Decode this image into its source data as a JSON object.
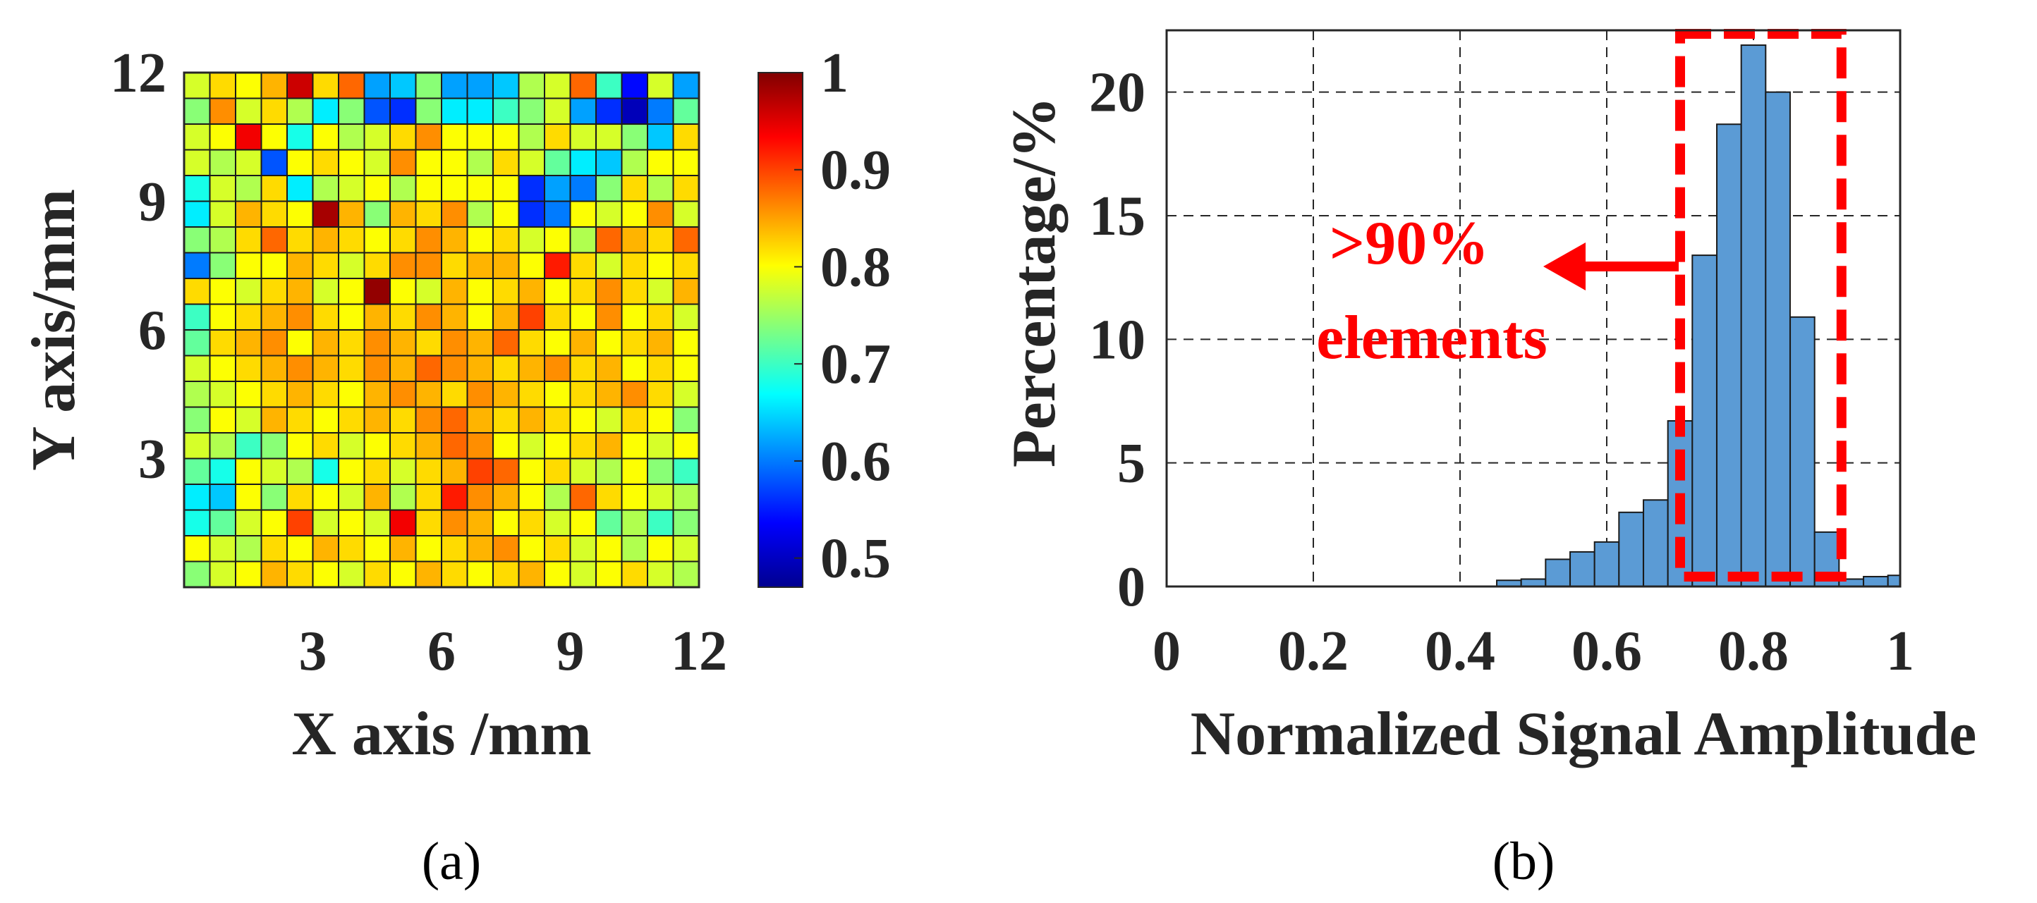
{
  "colors": {
    "hist_bar": "#5b9bd5",
    "highlight": "#ff0000",
    "text": "#262626"
  },
  "chart_data": [
    {
      "type": "heatmap",
      "panel_label": "(a)",
      "xlabel": "X axis /mm",
      "ylabel": "Y axis/mm",
      "xlim": [
        0,
        12
      ],
      "ylim": [
        0,
        12
      ],
      "x_ticks": [
        3,
        6,
        9,
        12
      ],
      "y_ticks": [
        3,
        6,
        9,
        12
      ],
      "colorbar": {
        "min": 0.47,
        "max": 1.0,
        "ticks": [
          0.5,
          0.6,
          0.7,
          0.8,
          0.9,
          1
        ]
      },
      "grid_size": 20,
      "rows_top_to_bottom": [
        [
          0.78,
          0.82,
          0.8,
          0.84,
          0.96,
          0.82,
          0.88,
          0.62,
          0.64,
          0.74,
          0.62,
          0.62,
          0.64,
          0.76,
          0.78,
          0.88,
          0.7,
          0.54,
          0.78,
          0.62
        ],
        [
          0.74,
          0.86,
          0.78,
          0.82,
          0.76,
          0.66,
          0.74,
          0.58,
          0.56,
          0.74,
          0.66,
          0.66,
          0.7,
          0.74,
          0.78,
          0.62,
          0.56,
          0.5,
          0.6,
          0.72
        ],
        [
          0.78,
          0.8,
          0.94,
          0.8,
          0.68,
          0.8,
          0.76,
          0.78,
          0.82,
          0.86,
          0.8,
          0.8,
          0.8,
          0.76,
          0.82,
          0.78,
          0.78,
          0.74,
          0.64,
          0.82
        ],
        [
          0.78,
          0.76,
          0.78,
          0.58,
          0.8,
          0.82,
          0.8,
          0.78,
          0.86,
          0.8,
          0.8,
          0.76,
          0.82,
          0.78,
          0.72,
          0.66,
          0.64,
          0.76,
          0.8,
          0.8
        ],
        [
          0.68,
          0.78,
          0.76,
          0.82,
          0.66,
          0.76,
          0.78,
          0.8,
          0.76,
          0.8,
          0.8,
          0.8,
          0.8,
          0.56,
          0.62,
          0.6,
          0.74,
          0.82,
          0.76,
          0.82
        ],
        [
          0.66,
          0.78,
          0.84,
          0.82,
          0.8,
          0.98,
          0.84,
          0.74,
          0.84,
          0.82,
          0.86,
          0.76,
          0.8,
          0.56,
          0.6,
          0.8,
          0.78,
          0.8,
          0.86,
          0.78
        ],
        [
          0.74,
          0.76,
          0.82,
          0.88,
          0.82,
          0.84,
          0.82,
          0.8,
          0.82,
          0.86,
          0.84,
          0.8,
          0.82,
          0.78,
          0.8,
          0.76,
          0.88,
          0.84,
          0.82,
          0.88
        ],
        [
          0.6,
          0.74,
          0.8,
          0.8,
          0.84,
          0.82,
          0.78,
          0.82,
          0.86,
          0.86,
          0.82,
          0.84,
          0.84,
          0.8,
          0.92,
          0.82,
          0.78,
          0.82,
          0.8,
          0.82
        ],
        [
          0.82,
          0.8,
          0.78,
          0.82,
          0.84,
          0.78,
          0.8,
          0.99,
          0.8,
          0.78,
          0.84,
          0.8,
          0.82,
          0.84,
          0.8,
          0.82,
          0.86,
          0.82,
          0.78,
          0.84
        ],
        [
          0.7,
          0.8,
          0.82,
          0.84,
          0.86,
          0.82,
          0.8,
          0.84,
          0.82,
          0.86,
          0.84,
          0.8,
          0.84,
          0.9,
          0.82,
          0.8,
          0.86,
          0.8,
          0.82,
          0.78
        ],
        [
          0.72,
          0.82,
          0.84,
          0.86,
          0.8,
          0.84,
          0.82,
          0.86,
          0.84,
          0.82,
          0.86,
          0.84,
          0.88,
          0.82,
          0.8,
          0.84,
          0.8,
          0.82,
          0.84,
          0.8
        ],
        [
          0.78,
          0.8,
          0.82,
          0.84,
          0.86,
          0.84,
          0.82,
          0.86,
          0.84,
          0.88,
          0.86,
          0.84,
          0.82,
          0.84,
          0.86,
          0.82,
          0.84,
          0.8,
          0.82,
          0.8
        ],
        [
          0.76,
          0.78,
          0.8,
          0.82,
          0.84,
          0.82,
          0.8,
          0.84,
          0.86,
          0.84,
          0.82,
          0.86,
          0.84,
          0.82,
          0.8,
          0.82,
          0.84,
          0.86,
          0.82,
          0.78
        ],
        [
          0.74,
          0.8,
          0.78,
          0.84,
          0.82,
          0.8,
          0.82,
          0.84,
          0.82,
          0.86,
          0.88,
          0.84,
          0.82,
          0.84,
          0.82,
          0.8,
          0.78,
          0.82,
          0.8,
          0.74
        ],
        [
          0.78,
          0.76,
          0.7,
          0.74,
          0.8,
          0.82,
          0.78,
          0.8,
          0.82,
          0.84,
          0.88,
          0.86,
          0.8,
          0.78,
          0.8,
          0.82,
          0.84,
          0.8,
          0.78,
          0.8
        ],
        [
          0.72,
          0.68,
          0.8,
          0.78,
          0.76,
          0.68,
          0.8,
          0.82,
          0.78,
          0.82,
          0.84,
          0.9,
          0.88,
          0.8,
          0.82,
          0.78,
          0.76,
          0.8,
          0.74,
          0.7
        ],
        [
          0.66,
          0.64,
          0.8,
          0.74,
          0.82,
          0.8,
          0.78,
          0.84,
          0.76,
          0.82,
          0.92,
          0.86,
          0.84,
          0.8,
          0.76,
          0.88,
          0.82,
          0.8,
          0.78,
          0.76
        ],
        [
          0.68,
          0.72,
          0.78,
          0.8,
          0.9,
          0.78,
          0.8,
          0.78,
          0.94,
          0.82,
          0.86,
          0.84,
          0.8,
          0.82,
          0.78,
          0.8,
          0.72,
          0.76,
          0.7,
          0.74
        ],
        [
          0.8,
          0.78,
          0.76,
          0.82,
          0.8,
          0.84,
          0.82,
          0.8,
          0.84,
          0.8,
          0.82,
          0.84,
          0.86,
          0.8,
          0.82,
          0.78,
          0.8,
          0.76,
          0.8,
          0.78
        ],
        [
          0.74,
          0.78,
          0.8,
          0.84,
          0.82,
          0.8,
          0.78,
          0.82,
          0.8,
          0.84,
          0.82,
          0.8,
          0.82,
          0.84,
          0.8,
          0.78,
          0.8,
          0.82,
          0.78,
          0.76
        ]
      ]
    },
    {
      "type": "bar",
      "panel_label": "(b)",
      "xlabel": "Normalized Signal Amplitude",
      "ylabel": "Percentage/%",
      "xlim": [
        0,
        1
      ],
      "ylim": [
        0,
        22.5
      ],
      "x_ticks": [
        "0",
        "0.2",
        "0.4",
        "0.6",
        "0.8",
        "1"
      ],
      "y_ticks": [
        "0",
        "5",
        "10",
        "15",
        "20"
      ],
      "grid": true,
      "bin_width": 0.0333,
      "bin_centers": [
        0.4667,
        0.5,
        0.5333,
        0.5667,
        0.6,
        0.6333,
        0.6667,
        0.7,
        0.7333,
        0.7667,
        0.8,
        0.8333,
        0.8667,
        0.9,
        0.9333,
        0.9667,
        1.0
      ],
      "values": [
        0.25,
        0.3,
        1.1,
        1.4,
        1.8,
        3.0,
        3.5,
        6.7,
        13.4,
        18.7,
        21.9,
        20.0,
        10.9,
        2.2,
        0.3,
        0.4,
        0.45
      ],
      "highlight_range": [
        0.7,
        0.92
      ],
      "annotation": {
        "line1": ">90%",
        "line2": "elements"
      }
    }
  ]
}
